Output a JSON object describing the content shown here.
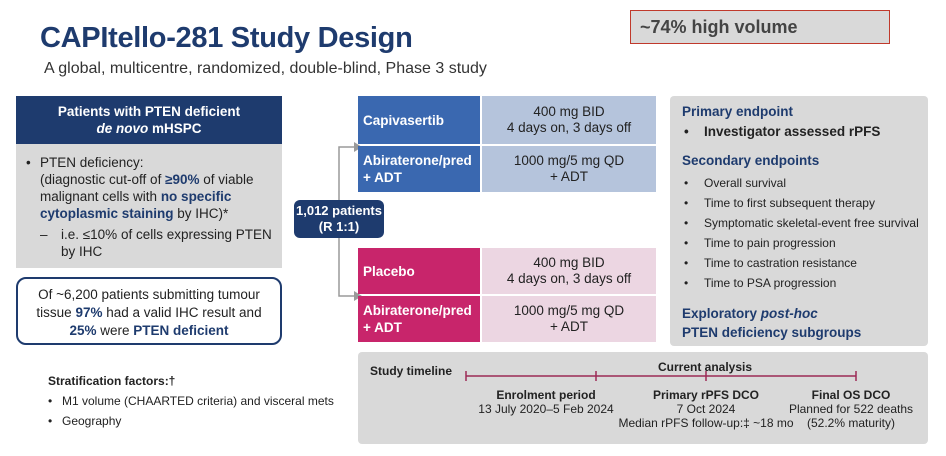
{
  "header": {
    "title": "CAPItello-281 Study Design",
    "subtitle": "A global, multicentre, randomized, double-blind, Phase 3 study",
    "note": "~74% high volume"
  },
  "patients": {
    "head1": "Patients with PTEN deficient",
    "head2_italic": "de novo",
    "head2_rest": " mHSPC",
    "b1_l1": "PTEN deficiency:",
    "b1_l2a": "(diagnostic cut-off of ",
    "b1_l2b": "≥90%",
    "b1_l2c": " of viable",
    "b1_l3a": "malignant cells with ",
    "b1_l3b": "no specific",
    "b1_l4a": "cytoplasmic staining",
    "b1_l4b": " by IHC)*",
    "b2_l1": "i.e. ≤10% of cells expressing PTEN",
    "b2_l2": "by IHC"
  },
  "screening": {
    "l1": "Of ~6,200 patients submitting tumour",
    "l2a": "tissue ",
    "l2b": "97%",
    "l2c": " had a valid IHC result and",
    "l3a": "25%",
    "l3b": " were ",
    "l3c": "PTEN deficient"
  },
  "stratification": {
    "title": "Stratification factors:†",
    "items": [
      "M1 volume (CHAARTED criteria) and visceral mets",
      "Geography"
    ]
  },
  "randomization": {
    "l1": "1,012 patients",
    "l2": "(R 1:1)"
  },
  "arms": {
    "top": {
      "drug1": "Capivasertib",
      "dose1_l1": "400 mg BID",
      "dose1_l2": "4 days on, 3 days off",
      "drug2_l1": "Abiraterone/pred",
      "drug2_l2": "+ ADT",
      "dose2_l1": "1000 mg/5 mg QD",
      "dose2_l2": "+ ADT"
    },
    "bottom": {
      "drug1": "Placebo",
      "dose1_l1": "400 mg BID",
      "dose1_l2": "4 days on, 3 days off",
      "drug2_l1": "Abiraterone/pred",
      "drug2_l2": "+ ADT",
      "dose2_l1": "1000 mg/5 mg QD",
      "dose2_l2": "+ ADT"
    }
  },
  "endpoints": {
    "primary_title": "Primary endpoint",
    "primary_item": "Investigator assessed rPFS",
    "secondary_title": "Secondary endpoints",
    "secondary_items": [
      "Overall survival",
      "Time to first subsequent therapy",
      "Symptomatic skeletal-event free survival",
      "Time to pain progression",
      "Time to castration resistance",
      "Time to PSA progression"
    ],
    "exploratory_l1a": "Exploratory ",
    "exploratory_l1b": "post-hoc",
    "exploratory_l2": "PTEN deficiency subgroups"
  },
  "timeline": {
    "title": "Study timeline",
    "current": "Current analysis",
    "enrol_title": "Enrolment period",
    "enrol_dates": "13 July 2020–5 Feb 2024",
    "primary_title": "Primary rPFS DCO",
    "primary_date": "7 Oct 2024",
    "primary_followup": "Median rPFS follow-up:‡ ~18 mo",
    "final_title": "Final OS DCO",
    "final_l1": "Planned for 522 deaths",
    "final_l2": "(52.2% maturity)"
  },
  "colors": {
    "navy": "#1e3b6e",
    "blue_arm": "#3a68b0",
    "blue_light": "#b5c4dc",
    "magenta_arm": "#c8256b",
    "magenta_light": "#ecd6e2",
    "panel_gray": "#d9d9d9",
    "timeline_line": "#9c2a56",
    "note_border": "#c0392b"
  }
}
